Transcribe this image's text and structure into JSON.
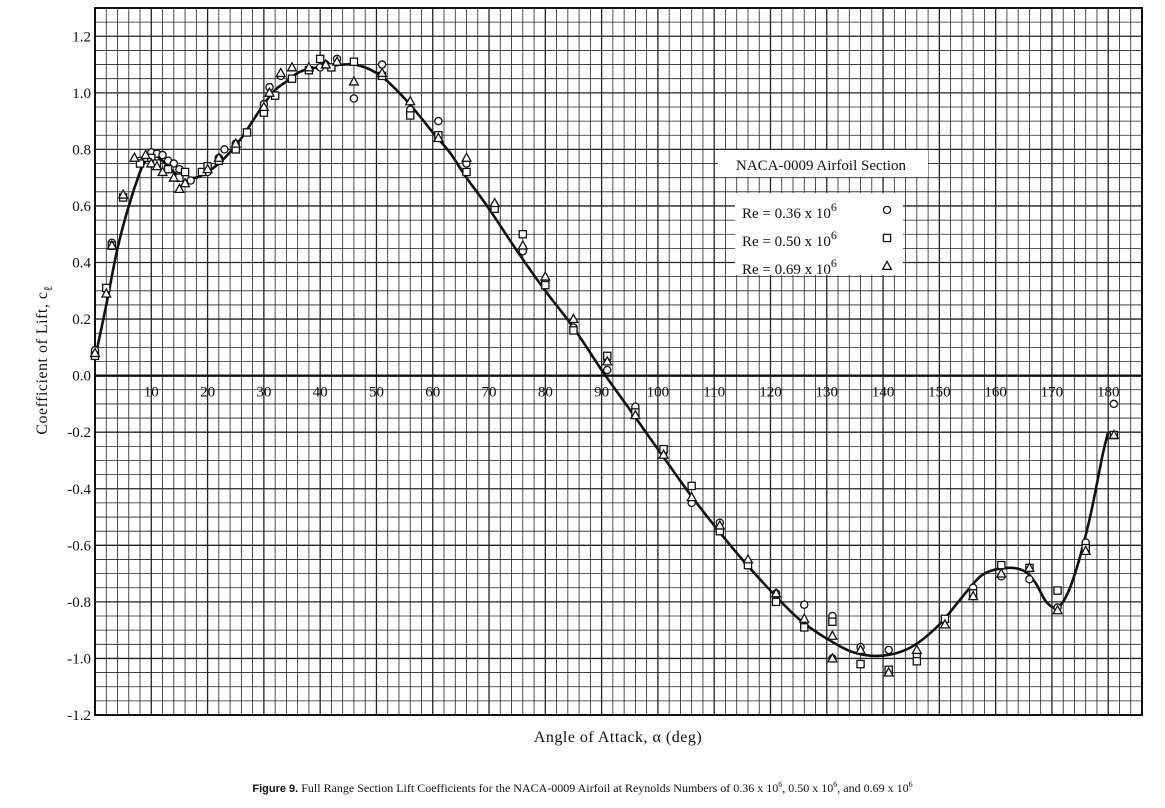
{
  "chart_data": {
    "type": "scatter",
    "xlabel": "Angle of Attack, α (deg)",
    "ylabel": "Coefficient of Lift, c",
    "ylabel_sub": "ℓ",
    "xlim": [
      0,
      186
    ],
    "ylim": [
      -1.2,
      1.3
    ],
    "x_ticks": [
      10,
      20,
      30,
      40,
      50,
      60,
      70,
      80,
      90,
      100,
      110,
      120,
      130,
      140,
      150,
      160,
      170,
      180
    ],
    "x_tick_labels": [
      "10",
      "20",
      "30",
      "40",
      "50",
      "60",
      "70",
      "80",
      "90",
      "100",
      "110",
      "120",
      "130",
      "140",
      "150",
      "160",
      "170",
      "180"
    ],
    "y_ticks": [
      1.2,
      1.0,
      0.8,
      0.6,
      0.4,
      0.2,
      0.0,
      -0.2,
      -0.4,
      -0.6,
      -0.8,
      -1.0,
      -1.2
    ],
    "y_tick_labels": [
      "1.2",
      "1.0",
      "0.8",
      "0.6",
      "0.4",
      "0.2",
      "0.0",
      "-0.2",
      "-0.4",
      "-0.6",
      "-0.8",
      "-1.0",
      "-1.2"
    ],
    "grid": true,
    "legend": {
      "title": "NACA-0009 Airfoil Section",
      "placement": "right",
      "entries": [
        {
          "label": "Re = 0.36 x 10",
          "exp": "6",
          "marker": "circle"
        },
        {
          "label": "Re = 0.50 x 10",
          "exp": "6",
          "marker": "square"
        },
        {
          "label": "Re = 0.69 x 10",
          "exp": "6",
          "marker": "triangle"
        }
      ]
    },
    "curve": {
      "x": [
        0,
        2,
        4,
        6,
        8,
        9,
        10,
        11,
        12,
        13,
        14,
        15,
        16,
        18,
        20,
        22,
        24,
        26,
        28,
        30,
        32,
        34,
        36,
        38,
        40,
        42,
        44,
        46,
        48,
        50,
        52,
        55,
        58,
        60,
        63,
        66,
        70,
        75,
        80,
        85,
        90,
        95,
        100,
        105,
        110,
        115,
        120,
        125,
        130,
        135,
        140,
        145,
        150,
        155,
        158,
        162,
        165,
        167,
        169,
        171,
        173,
        175,
        177,
        179,
        180
      ],
      "y": [
        0.06,
        0.25,
        0.45,
        0.6,
        0.72,
        0.76,
        0.78,
        0.775,
        0.76,
        0.74,
        0.72,
        0.705,
        0.7,
        0.7,
        0.72,
        0.75,
        0.79,
        0.84,
        0.9,
        0.96,
        1.01,
        1.04,
        1.07,
        1.085,
        1.09,
        1.095,
        1.1,
        1.1,
        1.09,
        1.07,
        1.04,
        0.98,
        0.91,
        0.86,
        0.79,
        0.7,
        0.59,
        0.44,
        0.3,
        0.17,
        0.02,
        -0.12,
        -0.26,
        -0.4,
        -0.53,
        -0.65,
        -0.76,
        -0.86,
        -0.93,
        -0.98,
        -0.99,
        -0.96,
        -0.88,
        -0.76,
        -0.7,
        -0.68,
        -0.69,
        -0.73,
        -0.8,
        -0.82,
        -0.76,
        -0.64,
        -0.48,
        -0.28,
        -0.2
      ]
    },
    "series": [
      {
        "marker": "circle",
        "points": [
          [
            0,
            0.09
          ],
          [
            3,
            0.47
          ],
          [
            5,
            0.63
          ],
          [
            8,
            0.76
          ],
          [
            9,
            0.77
          ],
          [
            10,
            0.79
          ],
          [
            11,
            0.785
          ],
          [
            12,
            0.78
          ],
          [
            13,
            0.76
          ],
          [
            14,
            0.75
          ],
          [
            15,
            0.73
          ],
          [
            16,
            0.7
          ],
          [
            17,
            0.69
          ],
          [
            20,
            0.72
          ],
          [
            22,
            0.77
          ],
          [
            23,
            0.8
          ],
          [
            25,
            0.82
          ],
          [
            27,
            0.86
          ],
          [
            30,
            0.96
          ],
          [
            31,
            1.02
          ],
          [
            33,
            1.06
          ],
          [
            35,
            1.05
          ],
          [
            38,
            1.08
          ],
          [
            40,
            1.09
          ],
          [
            41,
            1.1
          ],
          [
            43,
            1.12
          ],
          [
            46,
            0.98
          ],
          [
            51,
            1.1
          ],
          [
            56,
            0.94
          ],
          [
            61,
            0.9
          ],
          [
            66,
            0.75
          ],
          [
            71,
            0.6
          ],
          [
            76,
            0.44
          ],
          [
            80,
            0.33
          ],
          [
            85,
            0.17
          ],
          [
            91,
            0.06
          ],
          [
            91,
            0.02
          ],
          [
            96,
            -0.11
          ],
          [
            101,
            -0.27
          ],
          [
            106,
            -0.45
          ],
          [
            111,
            -0.52
          ],
          [
            116,
            -0.66
          ],
          [
            121,
            -0.77
          ],
          [
            126,
            -0.81
          ],
          [
            131,
            -0.85
          ],
          [
            131,
            -1.0
          ],
          [
            136,
            -0.96
          ],
          [
            141,
            -0.97
          ],
          [
            146,
            -0.99
          ],
          [
            156,
            -0.75
          ],
          [
            161,
            -0.71
          ],
          [
            166,
            -0.72
          ],
          [
            171,
            -0.82
          ],
          [
            176,
            -0.59
          ],
          [
            181,
            -0.1
          ]
        ]
      },
      {
        "marker": "square",
        "points": [
          [
            0,
            0.07
          ],
          [
            2,
            0.31
          ],
          [
            3,
            0.46
          ],
          [
            5,
            0.63
          ],
          [
            8,
            0.75
          ],
          [
            10,
            0.77
          ],
          [
            11,
            0.75
          ],
          [
            13,
            0.73
          ],
          [
            15,
            0.7
          ],
          [
            16,
            0.72
          ],
          [
            19,
            0.72
          ],
          [
            20,
            0.74
          ],
          [
            22,
            0.76
          ],
          [
            25,
            0.8
          ],
          [
            27,
            0.86
          ],
          [
            30,
            0.93
          ],
          [
            32,
            0.99
          ],
          [
            35,
            1.05
          ],
          [
            38,
            1.08
          ],
          [
            40,
            1.12
          ],
          [
            42,
            1.09
          ],
          [
            46,
            1.11
          ],
          [
            51,
            1.06
          ],
          [
            56,
            0.92
          ],
          [
            61,
            0.85
          ],
          [
            66,
            0.72
          ],
          [
            71,
            0.59
          ],
          [
            76,
            0.5
          ],
          [
            80,
            0.32
          ],
          [
            85,
            0.16
          ],
          [
            91,
            0.07
          ],
          [
            96,
            -0.13
          ],
          [
            101,
            -0.26
          ],
          [
            106,
            -0.39
          ],
          [
            111,
            -0.55
          ],
          [
            116,
            -0.67
          ],
          [
            121,
            -0.8
          ],
          [
            126,
            -0.89
          ],
          [
            131,
            -0.87
          ],
          [
            136,
            -1.02
          ],
          [
            141,
            -1.04
          ],
          [
            146,
            -1.01
          ],
          [
            151,
            -0.86
          ],
          [
            156,
            -0.77
          ],
          [
            161,
            -0.67
          ],
          [
            166,
            -0.68
          ],
          [
            171,
            -0.76
          ],
          [
            176,
            -0.61
          ],
          [
            181,
            -0.21
          ]
        ]
      },
      {
        "marker": "triangle",
        "points": [
          [
            0,
            0.08
          ],
          [
            2,
            0.29
          ],
          [
            3,
            0.46
          ],
          [
            5,
            0.64
          ],
          [
            7,
            0.77
          ],
          [
            9,
            0.78
          ],
          [
            10,
            0.75
          ],
          [
            11,
            0.74
          ],
          [
            12,
            0.72
          ],
          [
            14,
            0.7
          ],
          [
            15,
            0.66
          ],
          [
            16,
            0.68
          ],
          [
            20,
            0.73
          ],
          [
            22,
            0.77
          ],
          [
            25,
            0.82
          ],
          [
            30,
            0.95
          ],
          [
            31,
            1.0
          ],
          [
            33,
            1.07
          ],
          [
            35,
            1.09
          ],
          [
            38,
            1.09
          ],
          [
            41,
            1.1
          ],
          [
            43,
            1.11
          ],
          [
            46,
            1.04
          ],
          [
            51,
            1.07
          ],
          [
            56,
            0.97
          ],
          [
            61,
            0.84
          ],
          [
            66,
            0.77
          ],
          [
            71,
            0.61
          ],
          [
            76,
            0.46
          ],
          [
            80,
            0.35
          ],
          [
            85,
            0.2
          ],
          [
            91,
            0.05
          ],
          [
            96,
            -0.14
          ],
          [
            101,
            -0.28
          ],
          [
            106,
            -0.43
          ],
          [
            111,
            -0.53
          ],
          [
            116,
            -0.65
          ],
          [
            121,
            -0.77
          ],
          [
            126,
            -0.86
          ],
          [
            131,
            -0.92
          ],
          [
            131,
            -1.0
          ],
          [
            136,
            -0.97
          ],
          [
            141,
            -1.05
          ],
          [
            146,
            -0.97
          ],
          [
            151,
            -0.88
          ],
          [
            156,
            -0.78
          ],
          [
            161,
            -0.7
          ],
          [
            166,
            -0.68
          ],
          [
            171,
            -0.83
          ],
          [
            176,
            -0.62
          ],
          [
            181,
            -0.21
          ]
        ]
      }
    ]
  },
  "caption": {
    "label": "Figure 9.",
    "text": "Full Range Section Lift Coefficients for the NACA-0009 Airfoil at Reynolds Numbers of 0.36 x 10",
    "exp1": "6",
    "sep1": ", 0.50 x 10",
    "exp2": "6",
    "sep2": ", and 0.69 x 10",
    "exp3": "6"
  }
}
